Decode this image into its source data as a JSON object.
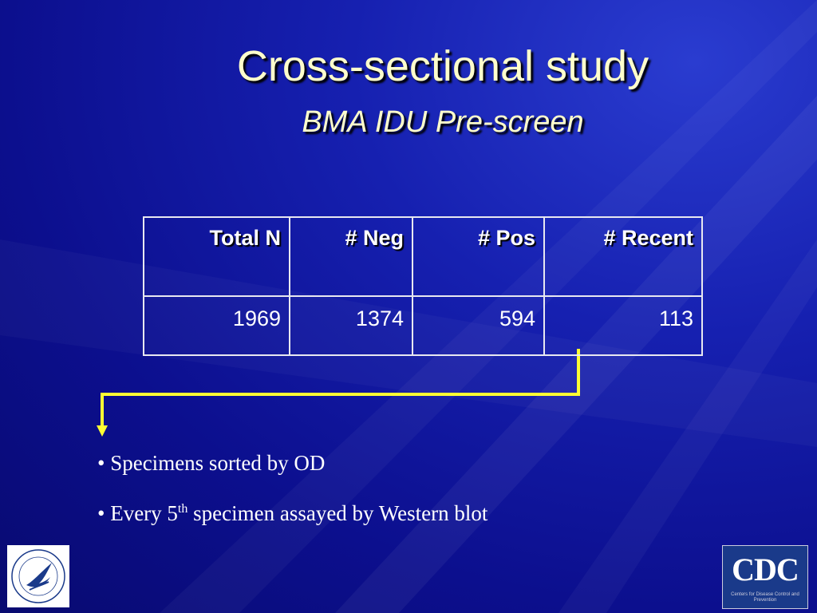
{
  "title": "Cross-sectional study",
  "subtitle": "BMA IDU Pre-screen",
  "table": {
    "header": [
      "Total N",
      "# Neg",
      "# Pos",
      "# Recent"
    ],
    "rows": [
      [
        "1969",
        "1374",
        "594",
        "113"
      ]
    ]
  },
  "bullets": [
    {
      "text": "Specimens sorted by OD"
    },
    {
      "text": "Every 5",
      "sup": "th",
      "rest": " specimen assayed by Western blot"
    }
  ],
  "logos": {
    "cdc": "CDC",
    "cdc_caption": "Centers for Disease Control and Prevention"
  }
}
